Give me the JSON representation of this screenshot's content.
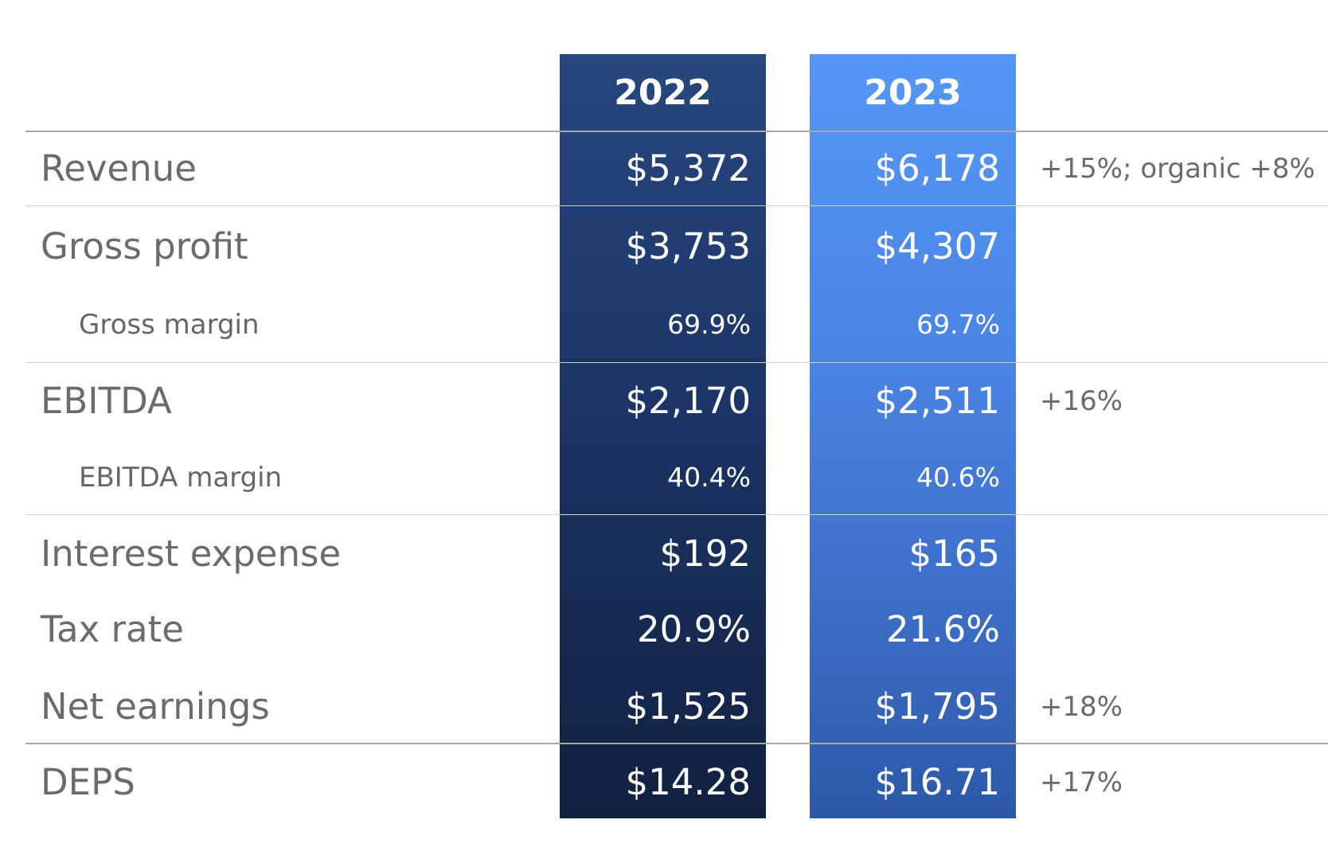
{
  "columns": {
    "year_2022": "2022",
    "year_2023": "2023"
  },
  "rows": [
    {
      "label": "Revenue",
      "v2022": "$5,372",
      "v2023": "$6,178",
      "note": "+15%; organic +8%"
    },
    {
      "label": "Gross profit",
      "v2022": "$3,753",
      "v2023": "$4,307",
      "note": ""
    },
    {
      "label": "Gross margin",
      "v2022": "69.9%",
      "v2023": "69.7%",
      "note": ""
    },
    {
      "label": "EBITDA",
      "v2022": "$2,170",
      "v2023": "$2,511",
      "note": "+16%"
    },
    {
      "label": "EBITDA margin",
      "v2022": "40.4%",
      "v2023": "40.6%",
      "note": ""
    },
    {
      "label": "Interest expense",
      "v2022": "$192",
      "v2023": "$165",
      "note": ""
    },
    {
      "label": "Tax rate",
      "v2022": "20.9%",
      "v2023": "21.6%",
      "note": ""
    },
    {
      "label": "Net earnings",
      "v2022": "$1,525",
      "v2023": "$1,795",
      "note": "+18%"
    },
    {
      "label": "DEPS",
      "v2022": "$14.28",
      "v2023": "$16.71",
      "note": "+17%"
    }
  ],
  "colors": {
    "col_2022": "#1b3364",
    "col_2023": "#4a84e4",
    "text_gray": "#6b6b6b"
  }
}
